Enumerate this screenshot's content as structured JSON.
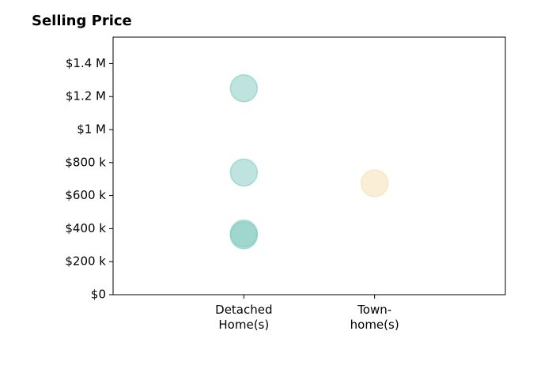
{
  "chart_data": {
    "type": "scatter",
    "title": "Selling Price",
    "xlabel": "",
    "ylabel": "",
    "categories": [
      [
        "Detached",
        "Home(s)"
      ],
      [
        "Town-",
        "home(s)"
      ]
    ],
    "xlim": [
      -1,
      2
    ],
    "ylim": [
      0,
      1560000
    ],
    "yticks": [
      0,
      200000,
      400000,
      600000,
      800000,
      1000000,
      1200000,
      1400000
    ],
    "ytick_labels": [
      "$0",
      "$200 k",
      "$400 k",
      "$600 k",
      "$800 k",
      "$1 M",
      "$1.2 M",
      "$1.4 M"
    ],
    "grid": false,
    "series": [
      {
        "color": "#7fc9c0",
        "points": [
          {
            "category": 0,
            "y": 1250000
          },
          {
            "category": 0,
            "y": 740000
          },
          {
            "category": 0,
            "y": 370000
          },
          {
            "category": 0,
            "y": 360000
          }
        ]
      },
      {
        "color": "#f5deb0",
        "points": [
          {
            "category": 1,
            "y": 675000
          }
        ]
      }
    ]
  }
}
